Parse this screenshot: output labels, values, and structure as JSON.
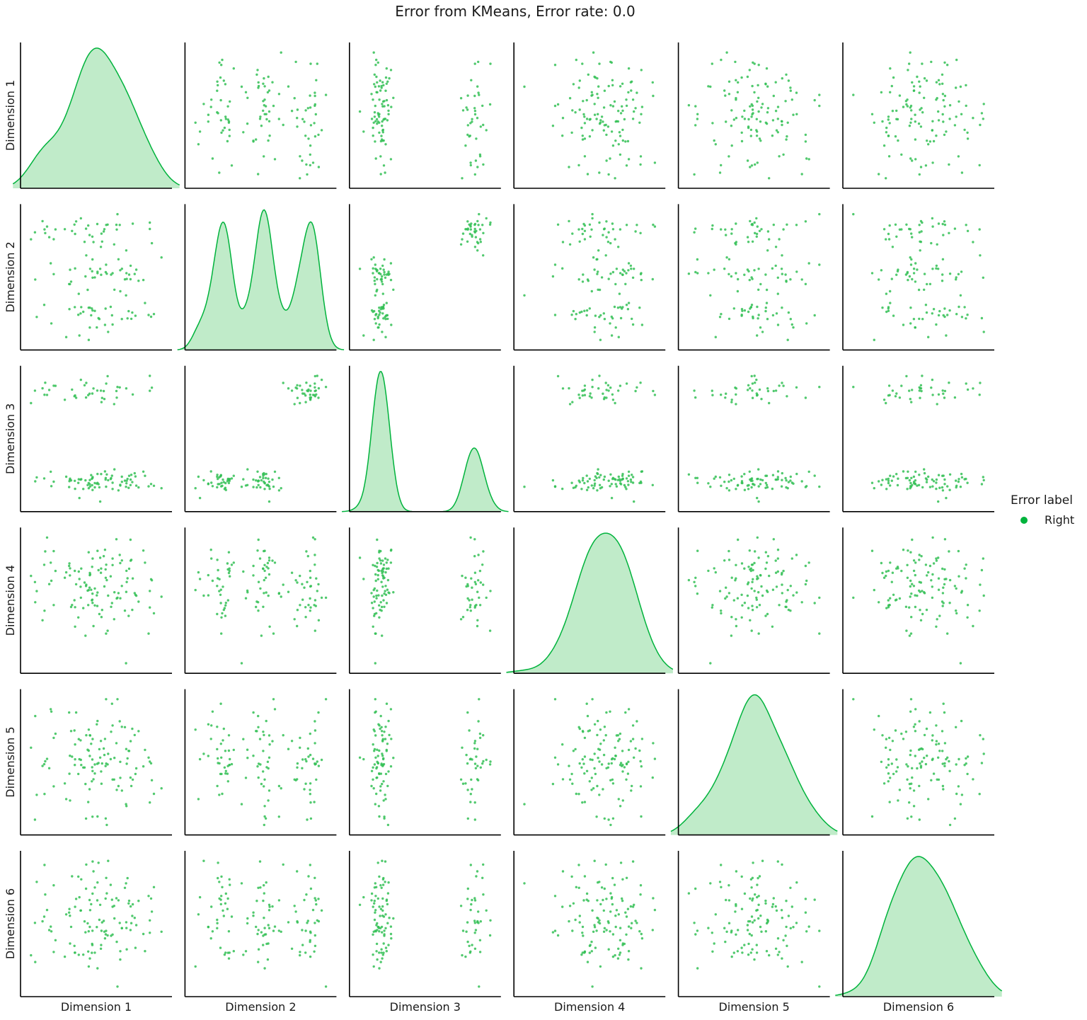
{
  "chart_data": {
    "type": "pairplot",
    "title": "Error from KMeans, Error rate: 0.0",
    "dimensions": [
      "Dimension 1",
      "Dimension 2",
      "Dimension 3",
      "Dimension 4",
      "Dimension 5",
      "Dimension 6"
    ],
    "n_points": 120,
    "diagonal": "kde",
    "off_diagonal": "scatter",
    "hue_field": "Error label",
    "legend": {
      "title": "Error label",
      "position": "right",
      "entries": [
        {
          "label": "Right",
          "color": "#00b33c"
        }
      ]
    },
    "clusters": {
      "Dimension 2": {
        "centers": [
          -2.4,
          0.0,
          2.3
        ],
        "spread": 0.5
      },
      "Dimension 3": {
        "centers": [
          -1.6,
          -1.6,
          1.6
        ],
        "spread": 0.22
      }
    },
    "kde": {
      "Dimension 1": {
        "peaks": [
          0.0
        ],
        "skew": "right"
      },
      "Dimension 2": {
        "peaks": [
          -1.8,
          -0.4,
          1.8
        ]
      },
      "Dimension 3": {
        "peaks": [
          -1.6,
          1.6
        ],
        "peak_ratio": 0.5
      },
      "Dimension 4": {
        "peaks": [
          0.0
        ],
        "skew": "left"
      },
      "Dimension 5": {
        "peaks": [
          0.0
        ],
        "skew": "right"
      },
      "Dimension 6": {
        "peaks": [
          0.0
        ],
        "skew": "right"
      }
    },
    "grid": false,
    "axes_ticks": false
  },
  "colors": {
    "points": "#33bf55",
    "kde_line": "#00b33c",
    "kde_fill": "#c0ebc9",
    "axis": "#000000"
  }
}
